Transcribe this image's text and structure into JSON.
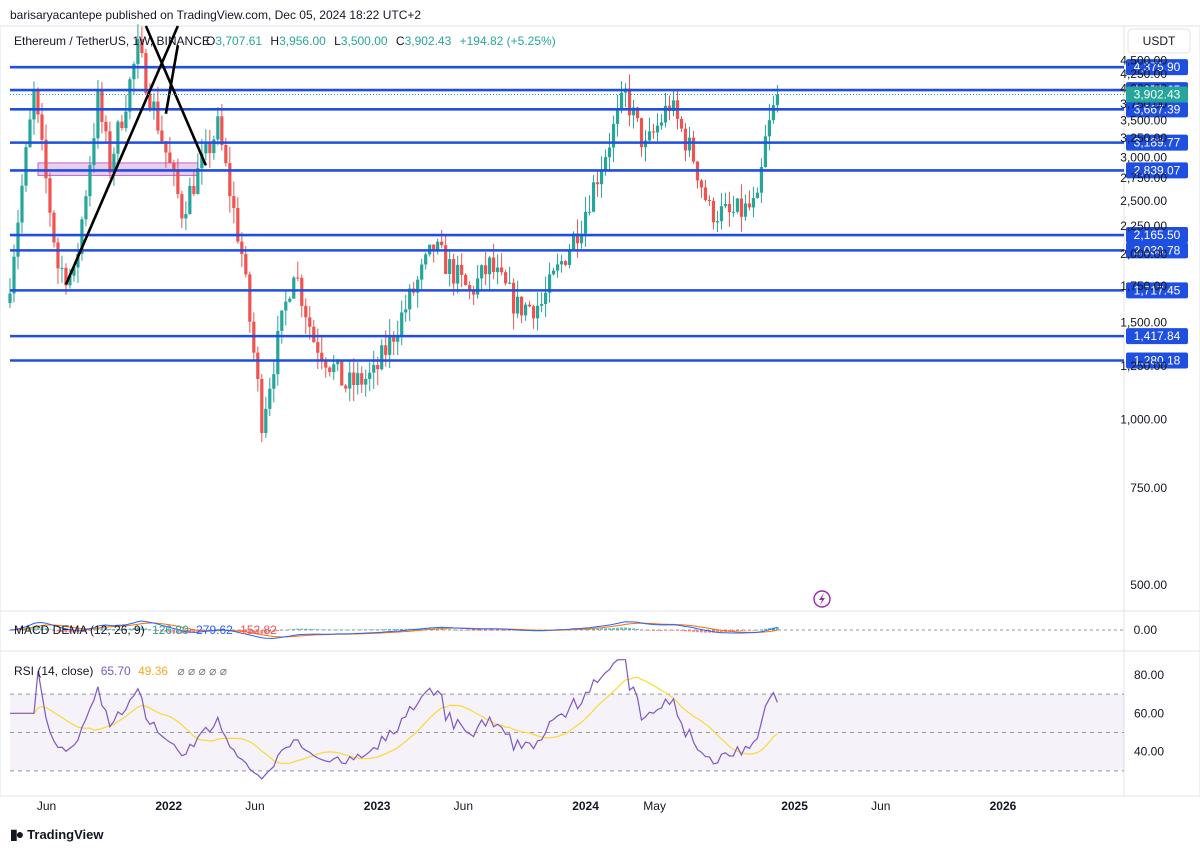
{
  "header": {
    "publisher": "barisaryacantepe published on TradingView.com, Dec 05, 2024 18:22 UTC+2"
  },
  "legend": {
    "symbol": "Ethereum / TetherUS, 1W, BINANCE",
    "open_label": "O",
    "open": "3,707.61",
    "high_label": "H",
    "high": "3,956.00",
    "low_label": "L",
    "low": "3,500.00",
    "close_label": "C",
    "close": "3,902.43",
    "change": "+194.82 (+5.25%)"
  },
  "currency_button": "USDT",
  "brand": {
    "name": "TradingView",
    "icon": "tradingview-logo-icon"
  },
  "flash_icon": "lightning-icon",
  "colors": {
    "up": "#26a69a",
    "down": "#ef5350",
    "level": "#1f4fe0",
    "macd": "#2962ff",
    "signal": "#ff6d00",
    "rsi": "#7e57c2",
    "rsi_ma": "#fdd835",
    "zone": "#e1bee7",
    "trendline": "#000000"
  },
  "chart_data": [
    {
      "type": "candlestick",
      "interval": "1W",
      "yscale": "log",
      "ylim": [
        450,
        5200
      ],
      "y_ticks": [
        "500.00",
        "750.00",
        "1,000.00",
        "1,250.00",
        "1,500.00",
        "1,750.00",
        "2,000.00",
        "2,250.00",
        "2,500.00",
        "2,750.00",
        "3,000.00",
        "3,250.00",
        "3,500.00",
        "3,750.00",
        "4,000.00",
        "4,250.00",
        "4,500.00"
      ],
      "y_tick_values": [
        500,
        750,
        1000,
        1250,
        1500,
        1750,
        2000,
        2250,
        2500,
        2750,
        3000,
        3250,
        3500,
        3750,
        4000,
        4250,
        4500
      ],
      "x_labels": [
        "Jun",
        "2022",
        "Jun",
        "2023",
        "Jun",
        "2024",
        "May",
        "2025",
        "Jun",
        "2026"
      ],
      "x_label_dates": [
        "2021-06-01",
        "2022-01-01",
        "2022-06-01",
        "2023-01-01",
        "2023-06-01",
        "2024-01-01",
        "2024-05-01",
        "2025-01-01",
        "2025-06-01",
        "2026-01-01"
      ],
      "x_range": [
        "2021-03-29",
        "2026-08-01"
      ],
      "horizontal_levels": [
        {
          "value": 4375.9,
          "label": "4,375.90"
        },
        {
          "value": 3975.65,
          "label": "3,975.65"
        },
        {
          "value": 3667.39,
          "label": "3,667.39"
        },
        {
          "value": 3189.77,
          "label": "3,189.77"
        },
        {
          "value": 2839.07,
          "label": "2,839.07"
        },
        {
          "value": 2165.5,
          "label": "2,165.50"
        },
        {
          "value": 2030.78,
          "label": "2,030.78"
        },
        {
          "value": 1717.45,
          "label": "1,717.45"
        },
        {
          "value": 1417.84,
          "label": "1,417.84"
        },
        {
          "value": 1280.18,
          "label": "1,280.18"
        }
      ],
      "last_price": {
        "value": 3902.43,
        "label": "3,902.43"
      },
      "zone": {
        "from": "2021-05-17",
        "to": "2022-02-21",
        "low": 2780,
        "high": 2930
      },
      "trendlines": [
        {
          "x1": "2021-07-05",
          "y1": 1760,
          "x2": "2022-01-17",
          "y2": 5200
        },
        {
          "x1": "2021-12-27",
          "y1": 3600,
          "x2": "2022-01-17",
          "y2": 4800
        },
        {
          "x1": "2021-11-22",
          "y1": 5200,
          "x2": "2022-03-07",
          "y2": 2900
        }
      ],
      "anchors": [
        {
          "date": "2021-03-29",
          "price": 1800
        },
        {
          "date": "2021-05-10",
          "price": 3900
        },
        {
          "date": "2021-06-21",
          "price": 1900
        },
        {
          "date": "2021-07-19",
          "price": 1800
        },
        {
          "date": "2021-08-30",
          "price": 3800
        },
        {
          "date": "2021-09-20",
          "price": 2900
        },
        {
          "date": "2021-11-08",
          "price": 4700
        },
        {
          "date": "2022-01-24",
          "price": 2400
        },
        {
          "date": "2022-03-28",
          "price": 3400
        },
        {
          "date": "2022-05-09",
          "price": 2000
        },
        {
          "date": "2022-06-13",
          "price": 1000
        },
        {
          "date": "2022-08-08",
          "price": 1900
        },
        {
          "date": "2022-09-12",
          "price": 1400
        },
        {
          "date": "2022-11-07",
          "price": 1150
        },
        {
          "date": "2022-12-26",
          "price": 1200
        },
        {
          "date": "2023-04-10",
          "price": 2050
        },
        {
          "date": "2023-06-12",
          "price": 1700
        },
        {
          "date": "2023-07-17",
          "price": 1900
        },
        {
          "date": "2023-09-04",
          "price": 1600
        },
        {
          "date": "2023-10-16",
          "price": 1620
        },
        {
          "date": "2023-12-25",
          "price": 2300
        },
        {
          "date": "2024-03-11",
          "price": 3900
        },
        {
          "date": "2024-04-15",
          "price": 3100
        },
        {
          "date": "2024-05-27",
          "price": 3750
        },
        {
          "date": "2024-07-08",
          "price": 3000
        },
        {
          "date": "2024-08-05",
          "price": 2400
        },
        {
          "date": "2024-09-09",
          "price": 2350
        },
        {
          "date": "2024-10-28",
          "price": 2450
        },
        {
          "date": "2024-11-11",
          "price": 3200
        },
        {
          "date": "2024-12-02",
          "price": 3902
        }
      ]
    },
    {
      "type": "line",
      "indicator": "MACD",
      "label": "MACD DEMA (12, 26, 9)",
      "values": [
        "126.80",
        "279.62",
        "152.82"
      ],
      "zero_tick": "0.00"
    },
    {
      "type": "line",
      "indicator": "RSI",
      "label": "RSI (14, close)",
      "values": [
        "65.70",
        "49.36"
      ],
      "y_ticks": [
        "80.00",
        "60.00",
        "40.00"
      ],
      "y_tick_values": [
        80,
        60,
        40
      ],
      "ylim": [
        20,
        92
      ],
      "band": [
        30,
        70
      ],
      "midline": 50,
      "last_rsi": 65.7,
      "last_ma": 49.36
    }
  ]
}
